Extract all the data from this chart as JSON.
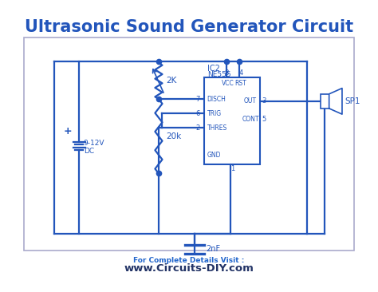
{
  "title": "Ultrasonic Sound Generator Circuit",
  "title_color": "#2255bb",
  "title_fontsize": 15,
  "bg_color": "#ffffff",
  "circuit_color": "#2255bb",
  "footer_text1": "For Complete Details Visit :",
  "footer_text2": "www.Circuits-DIY.com",
  "footer_color1": "#2266cc",
  "footer_color2": "#223366"
}
